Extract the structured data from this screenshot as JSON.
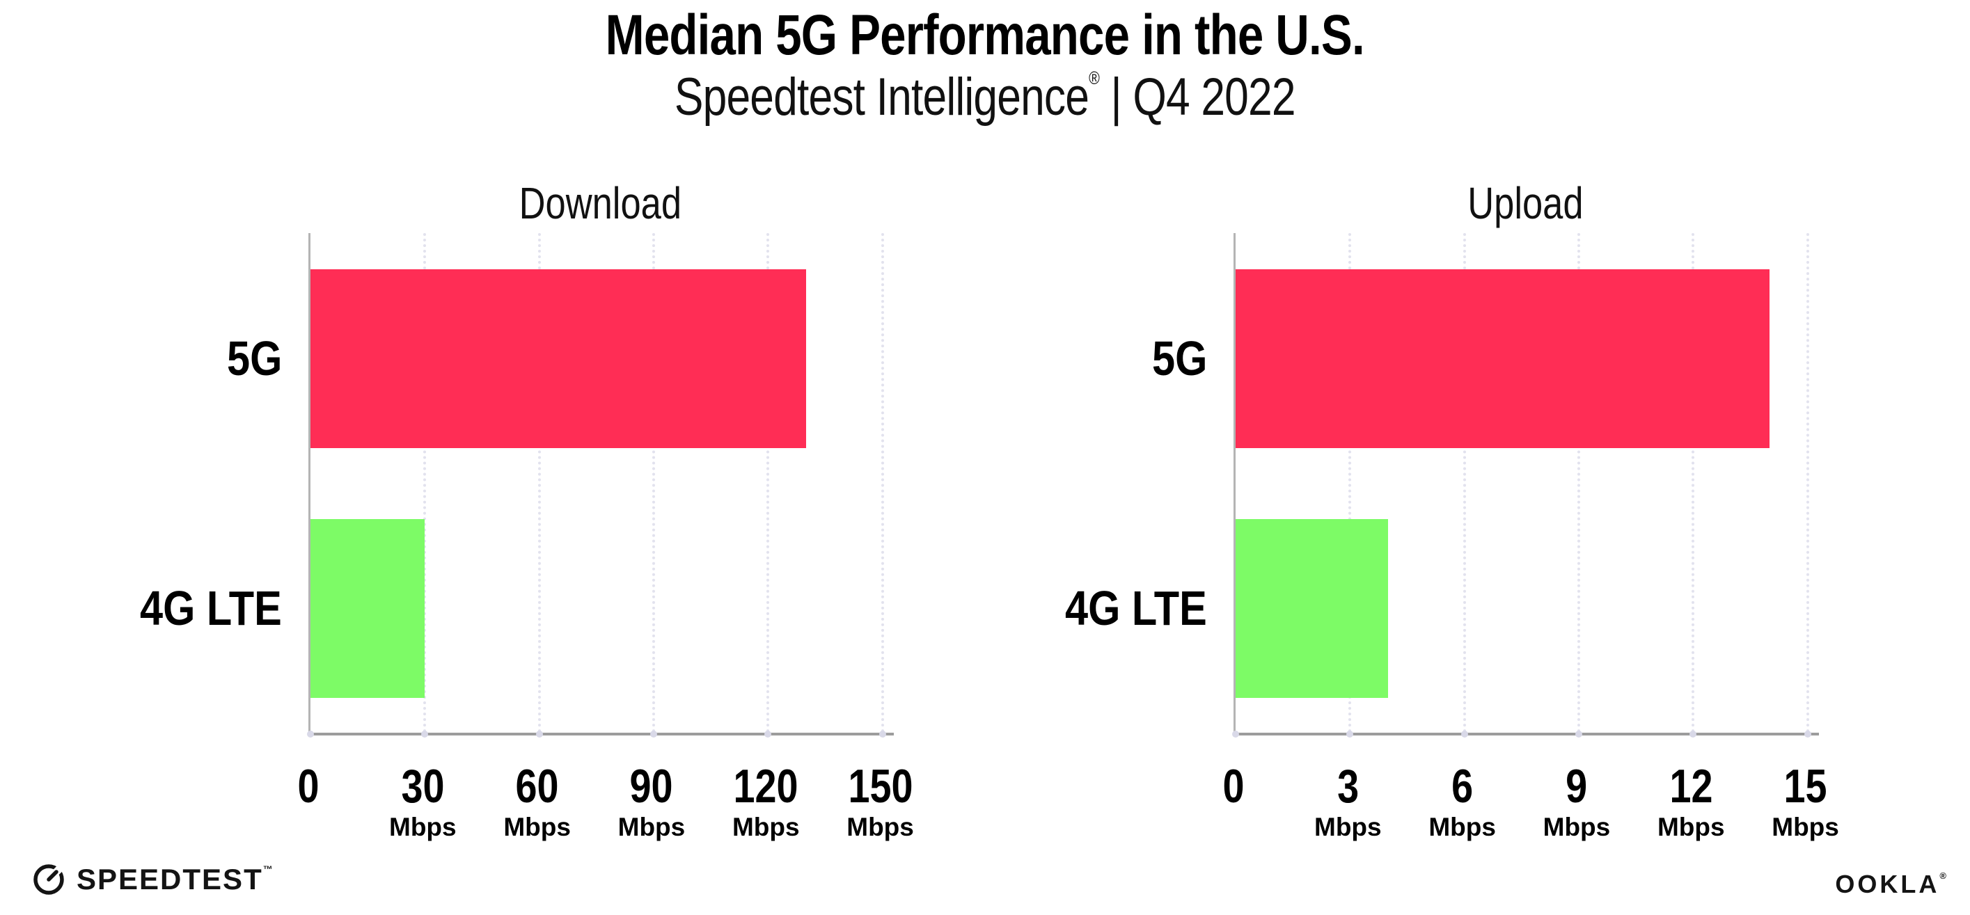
{
  "header": {
    "title": "Median 5G Performance in the U.S.",
    "subtitle_brand": "Speedtest Intelligence",
    "subtitle_mark": "®",
    "subtitle_rest": " | Q4 2022"
  },
  "footer": {
    "speedtest_label": "SPEEDTEST",
    "speedtest_mark": "™",
    "ookla_label": "OOKLA",
    "ookla_mark": "®"
  },
  "colors": {
    "bar_5g": "#FF2D55",
    "bar_4g_lte": "#7DFB66",
    "axis_line": "#9c9c9c",
    "gridline": "#e2e2ee",
    "tick_dot": "#d9d9e8",
    "text": "#000000"
  },
  "chart_data": [
    {
      "type": "bar",
      "orientation": "horizontal",
      "title": "Download",
      "categories": [
        "5G",
        "4G LTE"
      ],
      "values": [
        130,
        30
      ],
      "unit": "Mbps",
      "ticks": [
        0,
        30,
        60,
        90,
        120,
        150
      ],
      "xlim": [
        0,
        153
      ],
      "bar_colors": [
        "#FF2D55",
        "#7DFB66"
      ],
      "grid": "vertical-dotted",
      "legend": "none"
    },
    {
      "type": "bar",
      "orientation": "horizontal",
      "title": "Upload",
      "categories": [
        "5G",
        "4G LTE"
      ],
      "values": [
        14,
        4
      ],
      "unit": "Mbps",
      "ticks": [
        0,
        3,
        6,
        9,
        12,
        15
      ],
      "xlim": [
        0,
        15.3
      ],
      "bar_colors": [
        "#FF2D55",
        "#7DFB66"
      ],
      "grid": "vertical-dotted",
      "legend": "none"
    }
  ]
}
